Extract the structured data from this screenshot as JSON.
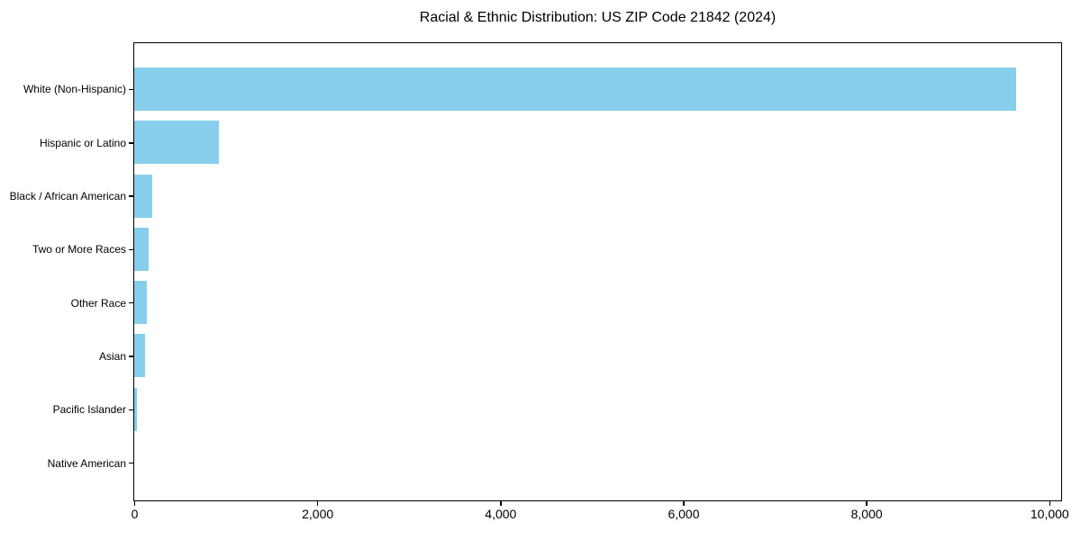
{
  "chart_data": {
    "type": "bar",
    "orientation": "horizontal",
    "title": "Racial & Ethnic Distribution: US ZIP Code 21842 (2024)",
    "categories": [
      "White (Non-Hispanic)",
      "Hispanic or Latino",
      "Black / African American",
      "Two or More Races",
      "Other Race",
      "Asian",
      "Pacific Islander",
      "Native American"
    ],
    "values": [
      9640,
      930,
      200,
      155,
      140,
      120,
      30,
      0
    ],
    "bar_color": "#87CEEB",
    "axis_color": "#000000",
    "text_color": "#000000",
    "background_color": "#ffffff",
    "xlabel": "",
    "ylabel": "",
    "xlim": [
      0,
      10120
    ],
    "x_ticks": [
      0,
      2000,
      4000,
      6000,
      8000,
      10000
    ],
    "x_tick_labels": [
      "0",
      "2,000",
      "4,000",
      "6,000",
      "8,000",
      "10,000"
    ],
    "grid": false,
    "legend": false
  }
}
